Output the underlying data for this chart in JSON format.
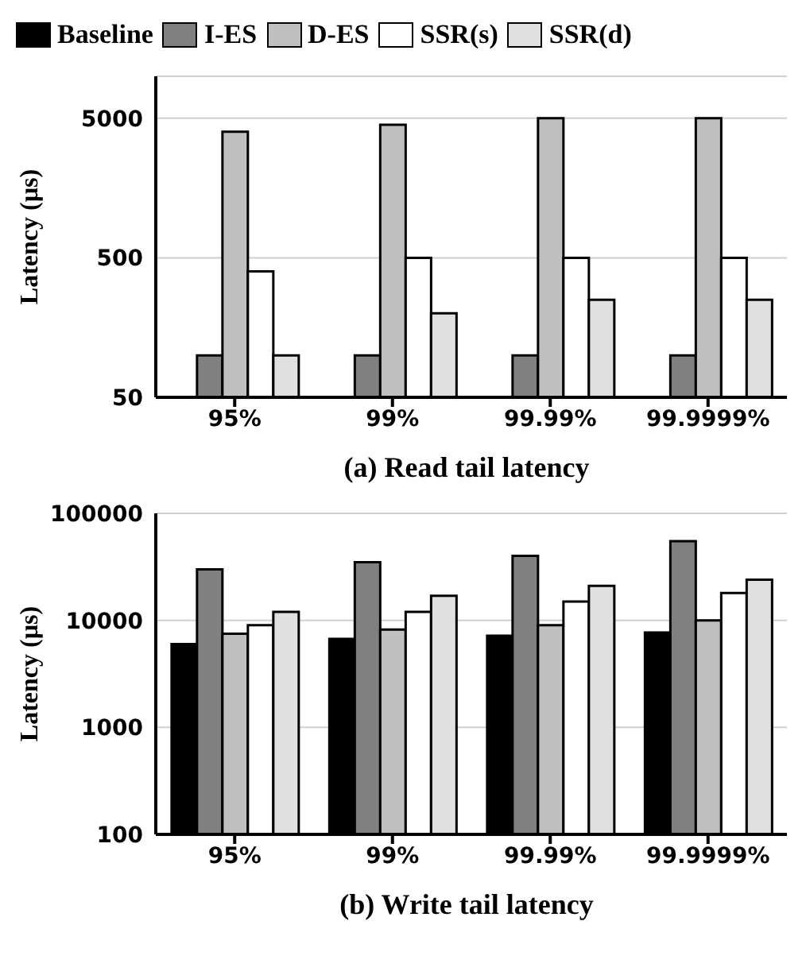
{
  "chart_data": [
    {
      "type": "bar",
      "title": "(a) Read tail latency",
      "ylabel": "Latency (µs)",
      "categories": [
        "95%",
        "99%",
        "99.99%",
        "99.9999%"
      ],
      "log": true,
      "ylim": [
        50,
        10000
      ],
      "yticks": [
        50,
        500,
        5000
      ],
      "grid": "y",
      "legend": "top",
      "series": [
        {
          "name": "Baseline",
          "color": "#000000",
          "values": [
            null,
            null,
            null,
            null
          ]
        },
        {
          "name": "I-ES",
          "color": "#808080",
          "values": [
            100,
            100,
            100,
            100
          ]
        },
        {
          "name": "D-ES",
          "color": "#c0c0c0",
          "values": [
            4000,
            4500,
            5000,
            5000
          ]
        },
        {
          "name": "SSR(s)",
          "color": "#ffffff",
          "values": [
            400,
            500,
            500,
            500
          ]
        },
        {
          "name": "SSR(d)",
          "color": "#e0e0e0",
          "values": [
            100,
            200,
            250,
            250
          ]
        }
      ]
    },
    {
      "type": "bar",
      "title": "(b) Write tail latency",
      "ylabel": "Latency (µs)",
      "categories": [
        "95%",
        "99%",
        "99.99%",
        "99.9999%"
      ],
      "log": true,
      "ylim": [
        100,
        100000
      ],
      "yticks": [
        100,
        1000,
        10000,
        100000
      ],
      "grid": "y",
      "series": [
        {
          "color": "#000000",
          "values": [
            6000,
            6700,
            7200,
            7700
          ]
        },
        {
          "color": "#808080",
          "values": [
            30000,
            35000,
            40000,
            55000
          ]
        },
        {
          "color": "#c0c0c0",
          "values": [
            7500,
            8200,
            9000,
            10000
          ]
        },
        {
          "color": "#ffffff",
          "values": [
            9000,
            12000,
            15000,
            18000
          ]
        },
        {
          "color": "#e0e0e0",
          "values": [
            12000,
            17000,
            21000,
            24000
          ]
        }
      ]
    }
  ]
}
